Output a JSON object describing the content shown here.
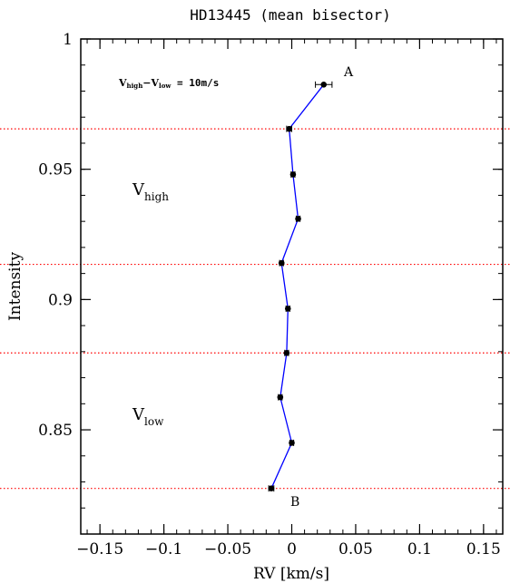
{
  "chart_data": {
    "type": "scatter",
    "title": "HD13445 (mean bisector)",
    "xlabel": "RV [km/s]",
    "ylabel": "Intensity",
    "xlim": [
      -0.165,
      0.165
    ],
    "ylim": [
      0.81,
      1.0
    ],
    "xticks": [
      -0.15,
      -0.1,
      -0.05,
      0,
      0.05,
      0.1,
      0.15
    ],
    "xtick_labels": [
      "−0.15",
      "−0.1",
      "−0.05",
      "0",
      "0.05",
      "0.1",
      "0.15"
    ],
    "yticks": [
      0.85,
      0.9,
      0.95,
      1.0
    ],
    "ytick_labels": [
      "0.85",
      "0.9",
      "0.95",
      "1"
    ],
    "series": [
      {
        "color": "#0000ff",
        "points": [
          {
            "x": 0.025,
            "y": 0.9825,
            "xerr": 0.0065
          },
          {
            "x": -0.002,
            "y": 0.9655,
            "xerr": 0.002
          },
          {
            "x": 0.001,
            "y": 0.948,
            "xerr": 0.0015
          },
          {
            "x": 0.005,
            "y": 0.931,
            "xerr": 0.0015
          },
          {
            "x": -0.008,
            "y": 0.914,
            "xerr": 0.0015
          },
          {
            "x": -0.003,
            "y": 0.8965,
            "xerr": 0.0015
          },
          {
            "x": -0.004,
            "y": 0.8795,
            "xerr": 0.0015
          },
          {
            "x": -0.009,
            "y": 0.8625,
            "xerr": 0.0015
          },
          {
            "x": 0.0,
            "y": 0.845,
            "xerr": 0.0015
          },
          {
            "x": -0.016,
            "y": 0.8275,
            "xerr": 0.002
          }
        ]
      }
    ],
    "hlines": {
      "color": "#ff0000",
      "style": "dotted",
      "y": [
        0.9655,
        0.9135,
        0.8795,
        0.8275
      ]
    },
    "annotations": {
      "label_a": "A",
      "label_b": "B",
      "span_v": "V",
      "span_high": "high",
      "span_minus": "−",
      "span_low": "low",
      "span_value": " = 10m/s",
      "vhigh_v": "V",
      "vhigh_sub": "high",
      "vlow_v": "V",
      "vlow_sub": "low"
    },
    "grid": false
  }
}
